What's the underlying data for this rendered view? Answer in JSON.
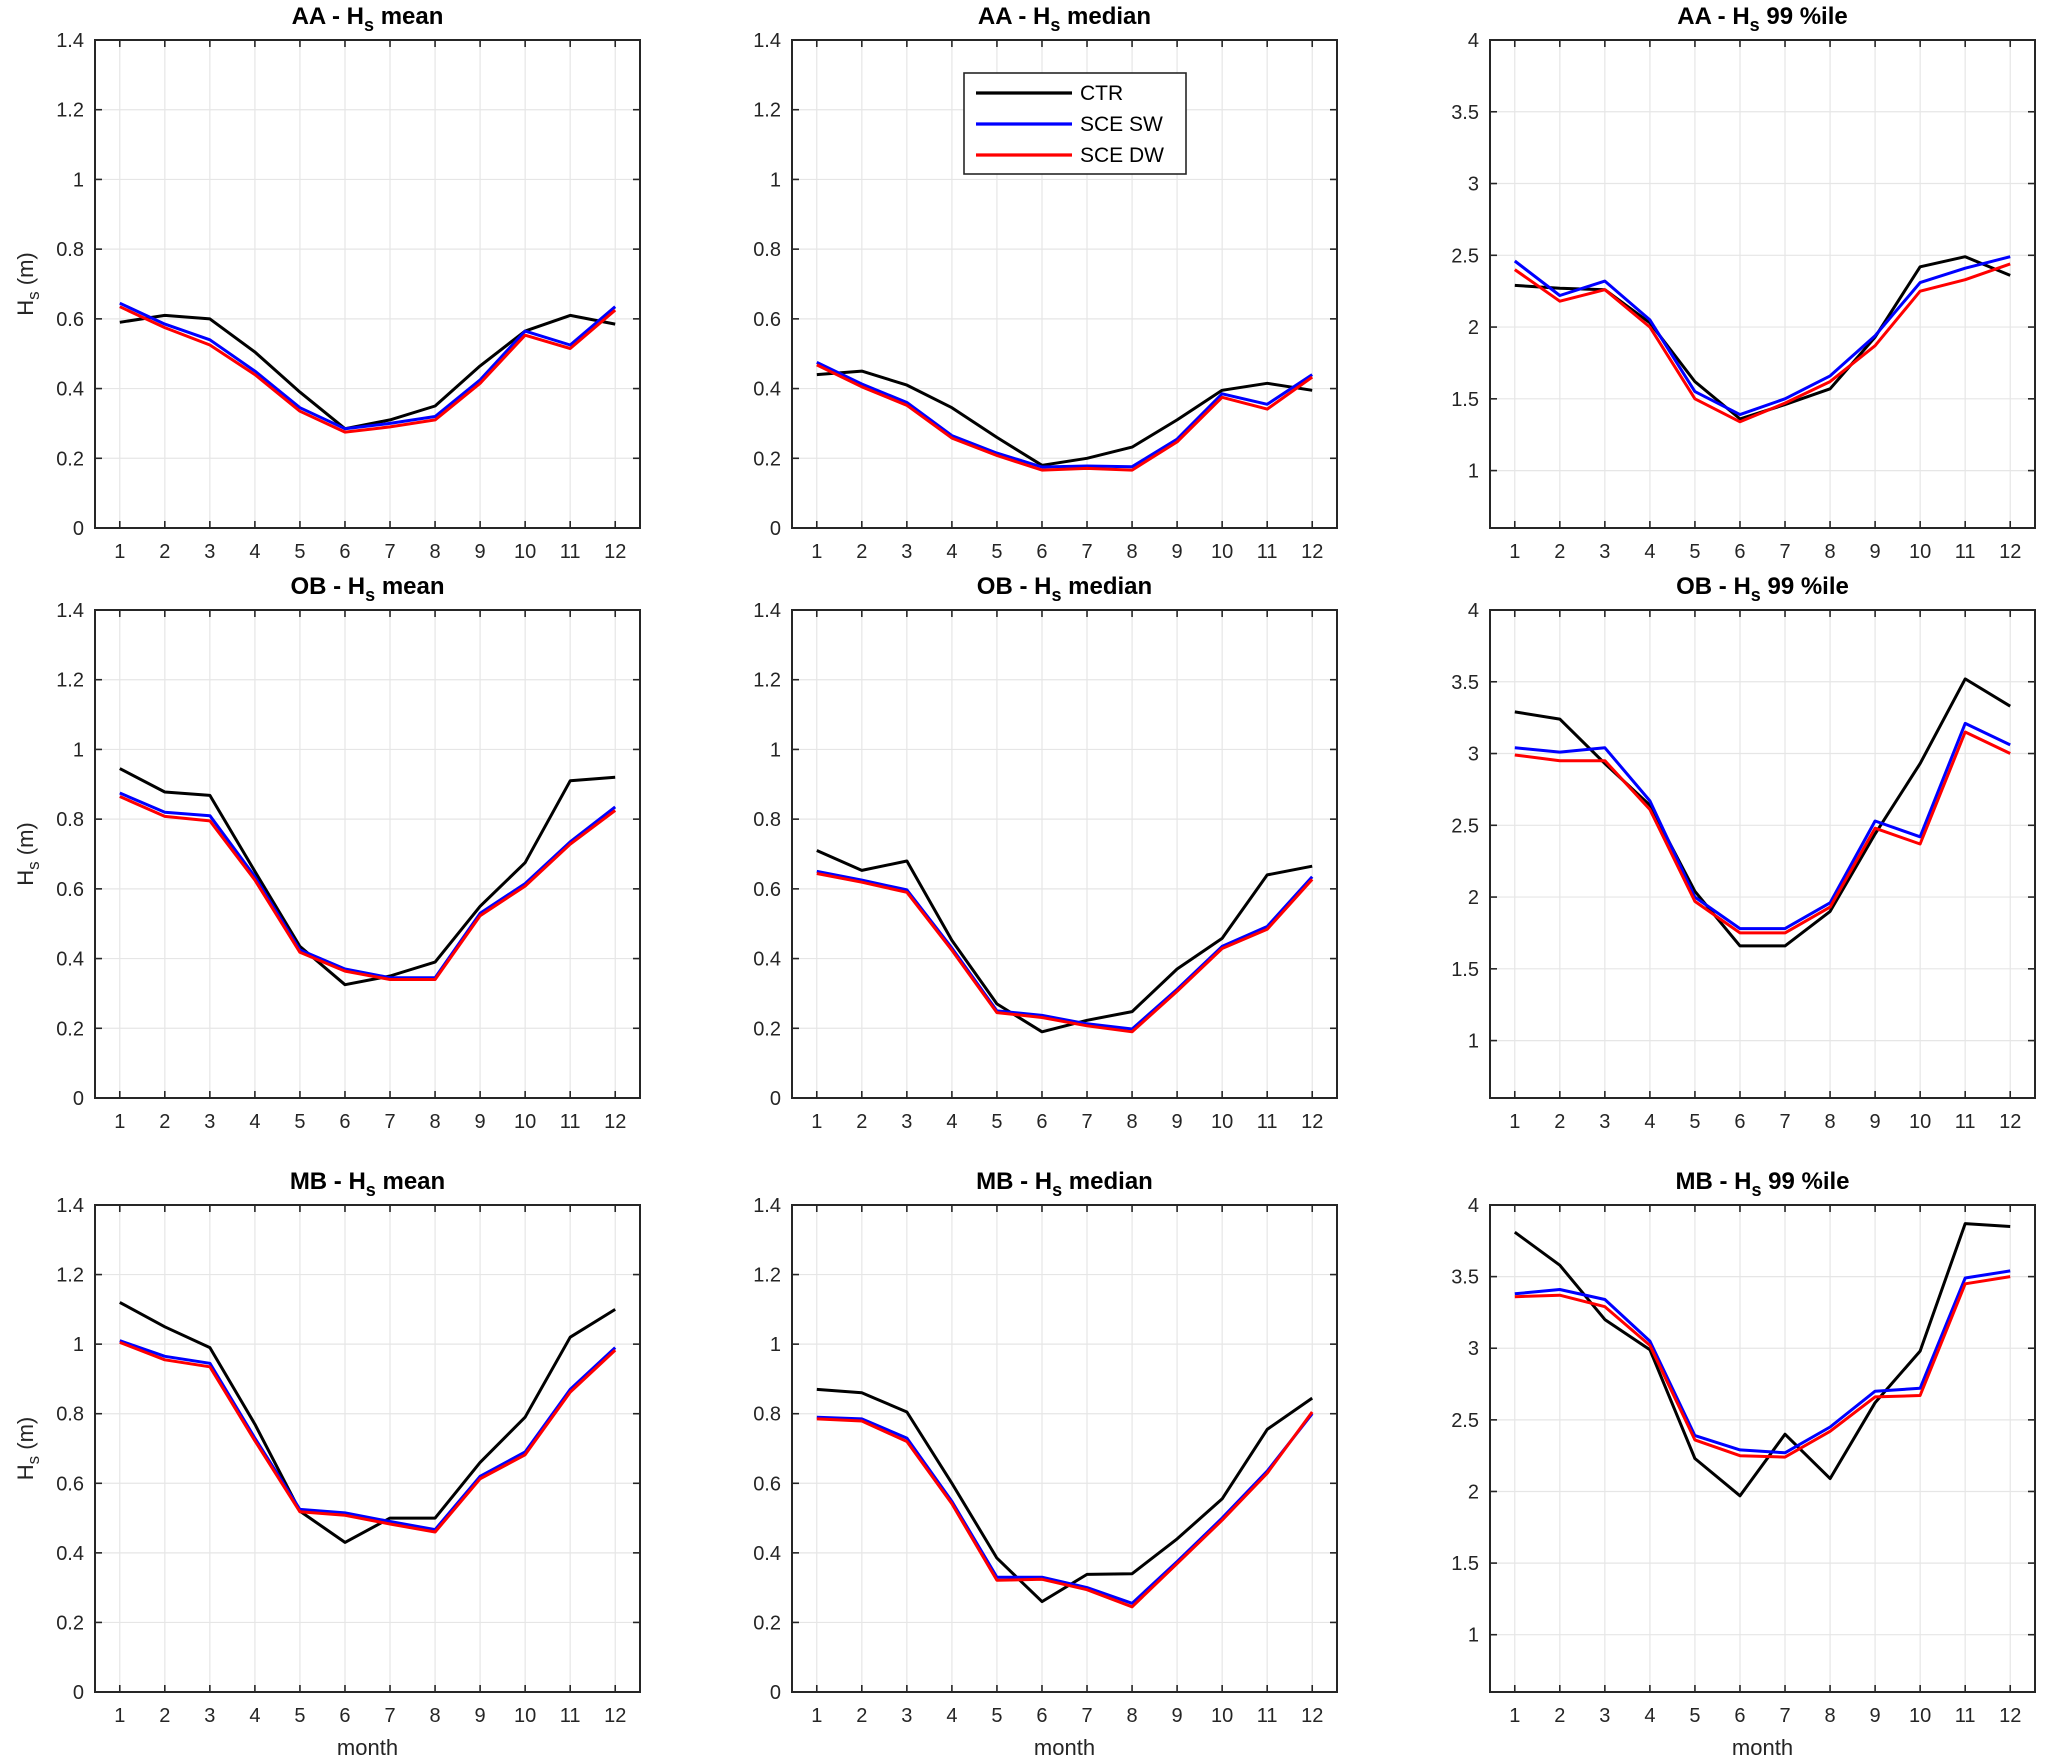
{
  "figure": {
    "background": "#ffffff",
    "grid_color": "#e6e6e6",
    "axis_color": "#262626",
    "xlabel": "month",
    "ylabel": {
      "main": "H",
      "sub": "s",
      "rest": " (m)"
    },
    "series_colors": {
      "CTR": "#000000",
      "SCE SW": "#0000ff",
      "SCE DW": "#ff0000"
    }
  },
  "legend": {
    "position": "top-center-of-chart-2",
    "entries": [
      {
        "label": "CTR",
        "color": "#000000"
      },
      {
        "label": "SCE SW",
        "color": "#0000ff"
      },
      {
        "label": "SCE DW",
        "color": "#ff0000"
      }
    ]
  },
  "chart_data": [
    {
      "type": "line",
      "title": {
        "prefix": "AA - H",
        "sub": "s",
        "suffix": " mean"
      },
      "x": [
        1,
        2,
        3,
        4,
        5,
        6,
        7,
        8,
        9,
        10,
        11,
        12
      ],
      "xlim": [
        0.45,
        12.55
      ],
      "ylim": [
        0,
        1.4
      ],
      "yticks": [
        0,
        0.2,
        0.4,
        0.6,
        0.8,
        1,
        1.2,
        1.4
      ],
      "ytick_labels": [
        "0",
        "0.2",
        "0.4",
        "0.6",
        "0.8",
        "1",
        "1.2",
        "1.4"
      ],
      "grid": true,
      "show_ylabel": true,
      "show_xlabel": false,
      "has_legend": false,
      "series": [
        {
          "name": "CTR",
          "values": [
            0.59,
            0.61,
            0.6,
            0.505,
            0.39,
            0.285,
            0.31,
            0.35,
            0.465,
            0.565,
            0.61,
            0.585
          ]
        },
        {
          "name": "SCE SW",
          "values": [
            0.645,
            0.585,
            0.54,
            0.45,
            0.345,
            0.285,
            0.3,
            0.32,
            0.425,
            0.565,
            0.525,
            0.635
          ]
        },
        {
          "name": "SCE DW",
          "values": [
            0.635,
            0.575,
            0.525,
            0.44,
            0.335,
            0.275,
            0.29,
            0.31,
            0.415,
            0.553,
            0.515,
            0.625
          ]
        }
      ]
    },
    {
      "type": "line",
      "title": {
        "prefix": "AA - H",
        "sub": "s",
        "suffix": " median"
      },
      "x": [
        1,
        2,
        3,
        4,
        5,
        6,
        7,
        8,
        9,
        10,
        11,
        12
      ],
      "xlim": [
        0.45,
        12.55
      ],
      "ylim": [
        0,
        1.4
      ],
      "yticks": [
        0,
        0.2,
        0.4,
        0.6,
        0.8,
        1,
        1.2,
        1.4
      ],
      "ytick_labels": [
        "0",
        "0.2",
        "0.4",
        "0.6",
        "0.8",
        "1",
        "1.2",
        "1.4"
      ],
      "grid": true,
      "show_ylabel": false,
      "show_xlabel": false,
      "has_legend": true,
      "series": [
        {
          "name": "CTR",
          "values": [
            0.44,
            0.45,
            0.41,
            0.345,
            0.26,
            0.18,
            0.2,
            0.232,
            0.31,
            0.395,
            0.415,
            0.395
          ]
        },
        {
          "name": "SCE SW",
          "values": [
            0.475,
            0.413,
            0.36,
            0.265,
            0.215,
            0.175,
            0.178,
            0.176,
            0.255,
            0.385,
            0.355,
            0.44
          ]
        },
        {
          "name": "SCE DW",
          "values": [
            0.468,
            0.405,
            0.352,
            0.258,
            0.208,
            0.166,
            0.171,
            0.166,
            0.247,
            0.375,
            0.341,
            0.433
          ]
        }
      ]
    },
    {
      "type": "line",
      "title": {
        "prefix": "AA - H",
        "sub": "s",
        "suffix": " 99 %ile"
      },
      "x": [
        1,
        2,
        3,
        4,
        5,
        6,
        7,
        8,
        9,
        10,
        11,
        12
      ],
      "xlim": [
        0.45,
        12.55
      ],
      "ylim": [
        0.6,
        4
      ],
      "yticks": [
        1,
        1.5,
        2,
        2.5,
        3,
        3.5,
        4
      ],
      "ytick_labels": [
        "1",
        "1.5",
        "2",
        "2.5",
        "3",
        "3.5",
        "4"
      ],
      "grid": true,
      "show_ylabel": false,
      "show_xlabel": false,
      "has_legend": false,
      "series": [
        {
          "name": "CTR",
          "values": [
            2.29,
            2.27,
            2.26,
            2.03,
            1.62,
            1.36,
            1.46,
            1.57,
            1.93,
            2.42,
            2.49,
            2.36
          ]
        },
        {
          "name": "SCE SW",
          "values": [
            2.46,
            2.22,
            2.32,
            2.05,
            1.55,
            1.39,
            1.5,
            1.66,
            1.94,
            2.31,
            2.41,
            2.49
          ]
        },
        {
          "name": "SCE DW",
          "values": [
            2.4,
            2.18,
            2.26,
            2.0,
            1.5,
            1.34,
            1.47,
            1.62,
            1.87,
            2.25,
            2.33,
            2.44
          ]
        }
      ]
    },
    {
      "type": "line",
      "title": {
        "prefix": "OB - H",
        "sub": "s",
        "suffix": " mean"
      },
      "x": [
        1,
        2,
        3,
        4,
        5,
        6,
        7,
        8,
        9,
        10,
        11,
        12
      ],
      "xlim": [
        0.45,
        12.55
      ],
      "ylim": [
        0,
        1.4
      ],
      "yticks": [
        0,
        0.2,
        0.4,
        0.6,
        0.8,
        1,
        1.2,
        1.4
      ],
      "ytick_labels": [
        "0",
        "0.2",
        "0.4",
        "0.6",
        "0.8",
        "1",
        "1.2",
        "1.4"
      ],
      "grid": true,
      "show_ylabel": true,
      "show_xlabel": false,
      "has_legend": false,
      "series": [
        {
          "name": "CTR",
          "values": [
            0.945,
            0.878,
            0.868,
            0.65,
            0.435,
            0.325,
            0.35,
            0.39,
            0.55,
            0.675,
            0.91,
            0.92
          ]
        },
        {
          "name": "SCE SW",
          "values": [
            0.875,
            0.82,
            0.81,
            0.635,
            0.425,
            0.37,
            0.345,
            0.345,
            0.53,
            0.615,
            0.735,
            0.835
          ]
        },
        {
          "name": "SCE DW",
          "values": [
            0.865,
            0.808,
            0.795,
            0.625,
            0.418,
            0.364,
            0.34,
            0.34,
            0.523,
            0.608,
            0.728,
            0.825
          ]
        }
      ]
    },
    {
      "type": "line",
      "title": {
        "prefix": "OB - H",
        "sub": "s",
        "suffix": " median"
      },
      "x": [
        1,
        2,
        3,
        4,
        5,
        6,
        7,
        8,
        9,
        10,
        11,
        12
      ],
      "xlim": [
        0.45,
        12.55
      ],
      "ylim": [
        0,
        1.4
      ],
      "yticks": [
        0,
        0.2,
        0.4,
        0.6,
        0.8,
        1,
        1.2,
        1.4
      ],
      "ytick_labels": [
        "0",
        "0.2",
        "0.4",
        "0.6",
        "0.8",
        "1",
        "1.2",
        "1.4"
      ],
      "grid": true,
      "show_ylabel": false,
      "show_xlabel": false,
      "has_legend": false,
      "series": [
        {
          "name": "CTR",
          "values": [
            0.71,
            0.653,
            0.68,
            0.452,
            0.27,
            0.19,
            0.223,
            0.248,
            0.37,
            0.458,
            0.64,
            0.665
          ]
        },
        {
          "name": "SCE SW",
          "values": [
            0.65,
            0.625,
            0.597,
            0.43,
            0.25,
            0.237,
            0.213,
            0.198,
            0.312,
            0.435,
            0.492,
            0.635
          ]
        },
        {
          "name": "SCE DW",
          "values": [
            0.644,
            0.619,
            0.59,
            0.424,
            0.245,
            0.231,
            0.207,
            0.19,
            0.306,
            0.429,
            0.484,
            0.627
          ]
        }
      ]
    },
    {
      "type": "line",
      "title": {
        "prefix": "OB - H",
        "sub": "s",
        "suffix": " 99 %ile"
      },
      "x": [
        1,
        2,
        3,
        4,
        5,
        6,
        7,
        8,
        9,
        10,
        11,
        12
      ],
      "xlim": [
        0.45,
        12.55
      ],
      "ylim": [
        0.6,
        4
      ],
      "yticks": [
        1,
        1.5,
        2,
        2.5,
        3,
        3.5,
        4
      ],
      "ytick_labels": [
        "1",
        "1.5",
        "2",
        "2.5",
        "3",
        "3.5",
        "4"
      ],
      "grid": true,
      "show_ylabel": false,
      "show_xlabel": false,
      "has_legend": false,
      "series": [
        {
          "name": "CTR",
          "values": [
            3.29,
            3.24,
            2.93,
            2.64,
            2.04,
            1.66,
            1.66,
            1.9,
            2.44,
            2.93,
            3.52,
            3.33
          ]
        },
        {
          "name": "SCE SW",
          "values": [
            3.04,
            3.01,
            3.04,
            2.67,
            2.0,
            1.78,
            1.78,
            1.96,
            2.53,
            2.42,
            3.21,
            3.06
          ]
        },
        {
          "name": "SCE DW",
          "values": [
            2.99,
            2.95,
            2.95,
            2.61,
            1.97,
            1.75,
            1.75,
            1.93,
            2.48,
            2.37,
            3.15,
            3.0
          ]
        }
      ]
    },
    {
      "type": "line",
      "title": {
        "prefix": "MB - H",
        "sub": "s",
        "suffix": " mean"
      },
      "x": [
        1,
        2,
        3,
        4,
        5,
        6,
        7,
        8,
        9,
        10,
        11,
        12
      ],
      "xlim": [
        0.45,
        12.55
      ],
      "ylim": [
        0,
        1.4
      ],
      "yticks": [
        0,
        0.2,
        0.4,
        0.6,
        0.8,
        1,
        1.2,
        1.4
      ],
      "ytick_labels": [
        "0",
        "0.2",
        "0.4",
        "0.6",
        "0.8",
        "1",
        "1.2",
        "1.4"
      ],
      "grid": true,
      "show_ylabel": true,
      "show_xlabel": true,
      "has_legend": false,
      "series": [
        {
          "name": "CTR",
          "values": [
            1.12,
            1.05,
            0.99,
            0.77,
            0.52,
            0.43,
            0.5,
            0.5,
            0.66,
            0.79,
            1.02,
            1.1
          ]
        },
        {
          "name": "SCE SW",
          "values": [
            1.01,
            0.965,
            0.945,
            0.73,
            0.525,
            0.515,
            0.49,
            0.467,
            0.62,
            0.69,
            0.87,
            0.99
          ]
        },
        {
          "name": "SCE DW",
          "values": [
            1.005,
            0.955,
            0.935,
            0.722,
            0.518,
            0.508,
            0.483,
            0.46,
            0.613,
            0.682,
            0.862,
            0.983
          ]
        }
      ]
    },
    {
      "type": "line",
      "title": {
        "prefix": "MB - H",
        "sub": "s",
        "suffix": " median"
      },
      "x": [
        1,
        2,
        3,
        4,
        5,
        6,
        7,
        8,
        9,
        10,
        11,
        12
      ],
      "xlim": [
        0.45,
        12.55
      ],
      "ylim": [
        0,
        1.4
      ],
      "yticks": [
        0,
        0.2,
        0.4,
        0.6,
        0.8,
        1,
        1.2,
        1.4
      ],
      "ytick_labels": [
        "0",
        "0.2",
        "0.4",
        "0.6",
        "0.8",
        "1",
        "1.2",
        "1.4"
      ],
      "grid": true,
      "show_ylabel": false,
      "show_xlabel": true,
      "has_legend": false,
      "series": [
        {
          "name": "CTR",
          "values": [
            0.87,
            0.86,
            0.805,
            0.6,
            0.385,
            0.26,
            0.338,
            0.34,
            0.44,
            0.555,
            0.755,
            0.845
          ]
        },
        {
          "name": "SCE SW",
          "values": [
            0.79,
            0.785,
            0.73,
            0.548,
            0.33,
            0.33,
            0.3,
            0.255,
            0.375,
            0.5,
            0.635,
            0.8
          ]
        },
        {
          "name": "SCE DW",
          "values": [
            0.785,
            0.779,
            0.72,
            0.541,
            0.321,
            0.324,
            0.294,
            0.245,
            0.369,
            0.494,
            0.629,
            0.805
          ]
        }
      ]
    },
    {
      "type": "line",
      "title": {
        "prefix": "MB - H",
        "sub": "s",
        "suffix": " 99 %ile"
      },
      "x": [
        1,
        2,
        3,
        4,
        5,
        6,
        7,
        8,
        9,
        10,
        11,
        12
      ],
      "xlim": [
        0.45,
        12.55
      ],
      "ylim": [
        0.6,
        4
      ],
      "yticks": [
        1,
        1.5,
        2,
        2.5,
        3,
        3.5,
        4
      ],
      "ytick_labels": [
        "1",
        "1.5",
        "2",
        "2.5",
        "3",
        "3.5",
        "4"
      ],
      "grid": true,
      "show_ylabel": false,
      "show_xlabel": true,
      "has_legend": false,
      "series": [
        {
          "name": "CTR",
          "values": [
            3.81,
            3.58,
            3.2,
            2.99,
            2.23,
            1.97,
            2.4,
            2.09,
            2.62,
            2.98,
            3.87,
            3.85
          ]
        },
        {
          "name": "SCE SW",
          "values": [
            3.38,
            3.41,
            3.34,
            3.05,
            2.39,
            2.29,
            2.27,
            2.45,
            2.7,
            2.72,
            3.49,
            3.54
          ]
        },
        {
          "name": "SCE DW",
          "values": [
            3.36,
            3.37,
            3.29,
            3.02,
            2.36,
            2.25,
            2.24,
            2.42,
            2.66,
            2.67,
            3.45,
            3.5
          ]
        }
      ]
    }
  ]
}
